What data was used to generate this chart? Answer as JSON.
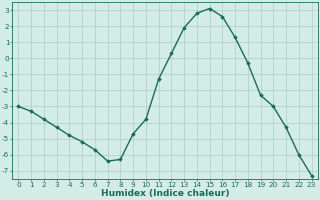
{
  "x": [
    0,
    1,
    2,
    3,
    4,
    5,
    6,
    7,
    8,
    9,
    10,
    11,
    12,
    13,
    14,
    15,
    16,
    17,
    18,
    19,
    20,
    21,
    22,
    23
  ],
  "y": [
    -3.0,
    -3.3,
    -3.8,
    -4.3,
    -4.8,
    -5.2,
    -5.7,
    -6.4,
    -6.3,
    -4.7,
    -3.8,
    -1.3,
    0.3,
    1.9,
    2.8,
    3.1,
    2.6,
    1.3,
    -0.3,
    -2.3,
    -3.0,
    -4.3,
    -6.0,
    -7.3
  ],
  "line_color": "#1a6b5a",
  "marker": "D",
  "marker_size": 1.8,
  "bg_color": "#d4ece6",
  "grid_color": "#aacec7",
  "xlabel": "Humidex (Indice chaleur)",
  "xlim": [
    -0.5,
    23.5
  ],
  "ylim": [
    -7.5,
    3.5
  ],
  "yticks": [
    -7,
    -6,
    -5,
    -4,
    -3,
    -2,
    -1,
    0,
    1,
    2,
    3
  ],
  "xticks": [
    0,
    1,
    2,
    3,
    4,
    5,
    6,
    7,
    8,
    9,
    10,
    11,
    12,
    13,
    14,
    15,
    16,
    17,
    18,
    19,
    20,
    21,
    22,
    23
  ],
  "tick_label_fontsize": 5.2,
  "xlabel_fontsize": 6.5,
  "line_width": 1.0
}
